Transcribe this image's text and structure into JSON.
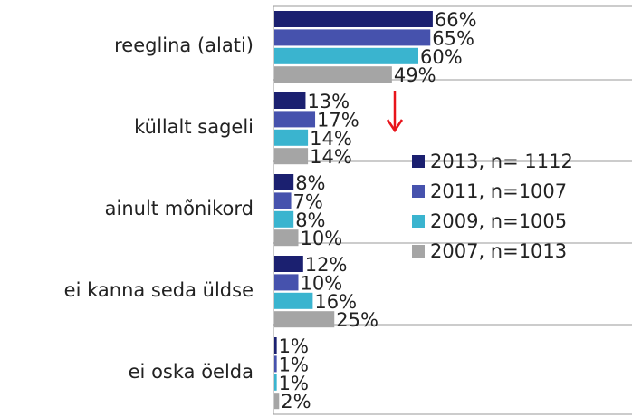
{
  "chart_data": {
    "type": "bar",
    "orientation": "horizontal",
    "categories": [
      "reeglina (alati)",
      "küllalt sageli",
      "ainult mõnikord",
      "ei kanna seda üldse",
      "ei oska öelda"
    ],
    "series": [
      {
        "name": "2013, n= 1112",
        "color": "#1b2070",
        "values": [
          66,
          13,
          8,
          12,
          1
        ],
        "value_labels": [
          "66%",
          "13%",
          "8%",
          "12%",
          "1%"
        ]
      },
      {
        "name": "2011, n=1007",
        "color": "#4652ad",
        "values": [
          65,
          17,
          7,
          10,
          1
        ],
        "value_labels": [
          "65%",
          "17%",
          "7%",
          "10%",
          "1%"
        ]
      },
      {
        "name": "2009, n=1005",
        "color": "#3ab4cf",
        "values": [
          60,
          14,
          8,
          16,
          1
        ],
        "value_labels": [
          "60%",
          "14%",
          "8%",
          "16%",
          "1%"
        ]
      },
      {
        "name": "2007, n=1013",
        "color": "#a5a5a5",
        "values": [
          49,
          14,
          10,
          25,
          2
        ],
        "value_labels": [
          "49%",
          "14%",
          "10%",
          "25%",
          "2%"
        ]
      }
    ]
  }
}
